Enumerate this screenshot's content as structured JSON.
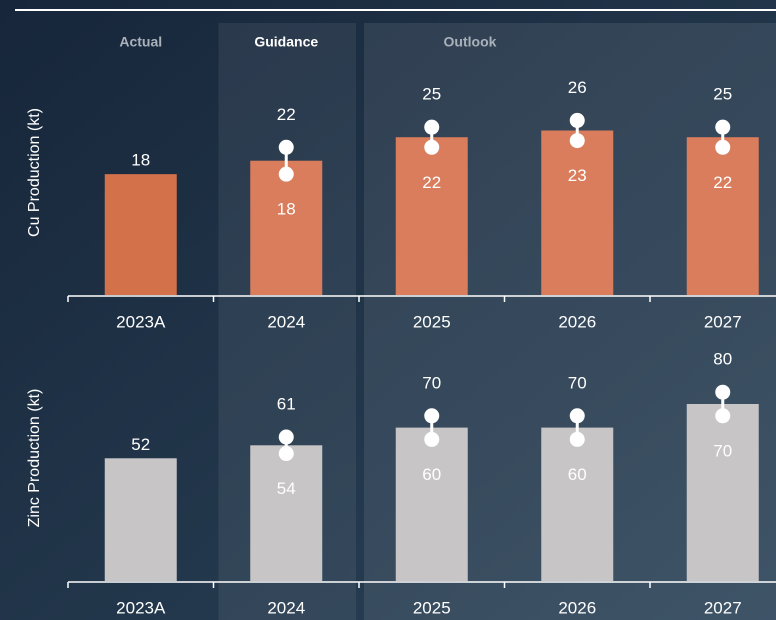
{
  "chart_data": [
    {
      "type": "bar",
      "ylabel": "Cu Production (kt)",
      "groups": [
        {
          "label": "Actual",
          "span": 1
        },
        {
          "label": "Guidance",
          "span": 1,
          "bold": true
        },
        {
          "label": "Outlook",
          "span": 3
        }
      ],
      "categories": [
        "2023A",
        "2024",
        "2025",
        "2026",
        "2027"
      ],
      "values": [
        18,
        20,
        23.5,
        24.5,
        23.5
      ],
      "low": [
        null,
        18,
        22,
        23,
        22
      ],
      "high": [
        null,
        22,
        25,
        26,
        25
      ],
      "colors": [
        "#d3714a",
        "#d97d5c",
        "#d97d5c",
        "#d97d5c",
        "#d97d5c"
      ],
      "ylim": [
        0,
        35
      ]
    },
    {
      "type": "bar",
      "ylabel": "Zinc Production (kt)",
      "categories": [
        "2023A",
        "2024",
        "2025",
        "2026",
        "2027"
      ],
      "values": [
        52,
        57.5,
        65,
        65,
        75
      ],
      "low": [
        null,
        54,
        60,
        60,
        70
      ],
      "high": [
        null,
        61,
        70,
        70,
        80
      ],
      "colors": [
        "#c8c5c6",
        "#c8c5c6",
        "#c8c5c6",
        "#c8c5c6",
        "#c8c5c6"
      ],
      "ylim": [
        0,
        100
      ]
    }
  ]
}
